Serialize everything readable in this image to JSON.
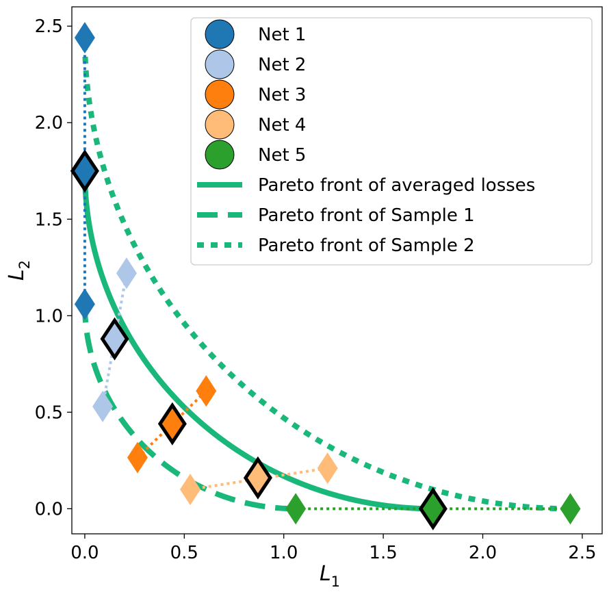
{
  "chart_data": {
    "type": "scatter",
    "xlabel": "L",
    "xlabel_sub": "1",
    "ylabel": "L",
    "ylabel_sub": "2",
    "xlim": [
      -0.065,
      2.6
    ],
    "ylim": [
      -0.13,
      2.6
    ],
    "x_ticks": [
      0.0,
      0.5,
      1.0,
      1.5,
      2.0,
      2.5
    ],
    "y_ticks": [
      0.0,
      0.5,
      1.0,
      1.5,
      2.0,
      2.5
    ],
    "x_tick_labels": [
      "0.0",
      "0.5",
      "1.0",
      "1.5",
      "2.0",
      "2.5"
    ],
    "y_tick_labels": [
      "0.0",
      "0.5",
      "1.0",
      "1.5",
      "2.0",
      "2.5"
    ],
    "nets": [
      {
        "name": "Net 1",
        "color": "#1f77b4",
        "averaged": [
          0.0,
          1.75
        ],
        "sample1": [
          0.0,
          1.06
        ],
        "sample2": [
          0.0,
          2.44
        ]
      },
      {
        "name": "Net 2",
        "color": "#aec7e8",
        "averaged": [
          0.15,
          0.88
        ],
        "sample1": [
          0.09,
          0.53
        ],
        "sample2": [
          0.21,
          1.22
        ]
      },
      {
        "name": "Net 3",
        "color": "#ff7f0e",
        "averaged": [
          0.44,
          0.44
        ],
        "sample1": [
          0.265,
          0.265
        ],
        "sample2": [
          0.61,
          0.61
        ]
      },
      {
        "name": "Net 4",
        "color": "#ffbb78",
        "averaged": [
          0.87,
          0.16
        ],
        "sample1": [
          0.53,
          0.1
        ],
        "sample2": [
          1.22,
          0.21
        ]
      },
      {
        "name": "Net 5",
        "color": "#2ca02c",
        "averaged": [
          1.75,
          0.0
        ],
        "sample1": [
          1.06,
          0.0
        ],
        "sample2": [
          2.44,
          0.0
        ]
      }
    ],
    "fronts": [
      {
        "name": "Pareto front of averaged losses",
        "style": "solid",
        "color": "#19b87a",
        "xmax": 1.75
      },
      {
        "name": "Pareto front of Sample 1",
        "style": "dashed",
        "color": "#19b87a",
        "xmax": 1.06
      },
      {
        "name": "Pareto front of Sample 2",
        "style": "dotted",
        "color": "#19b87a",
        "xmax": 2.44
      }
    ],
    "legend_position": "upper-right"
  }
}
